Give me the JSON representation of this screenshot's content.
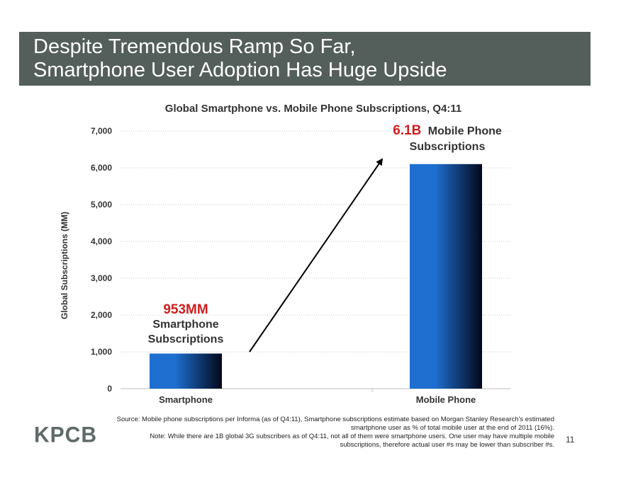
{
  "slide": {
    "title_line1": "Despite Tremendous Ramp So Far,",
    "title_line2": "Smartphone User Adoption Has Huge Upside",
    "logo": "KPCB",
    "page_number": "11",
    "source_note": "Source: Mobile phone subscriptions per Informa (as of Q4:11), Smartphone subscriptions estimate based on Morgan Stanley Research's estimated smartphone user as % of total mobile user at the end of 2011 (16%).",
    "note": "Note: While there are 1B global 3G subscribers as of Q4:11, not all of them were smartphone users. One user may have multiple mobile subscriptions, therefore actual user #s may be lower than subscriber #s."
  },
  "colors": {
    "title_bar": "#545e5a",
    "bar_light": "#1e6fd0",
    "bar_dark": "#02081a",
    "highlight_red": "#cc1f1f",
    "gridline": "#c8c8c8"
  },
  "annotations": [
    {
      "value": "953MM",
      "text_line1": "Smartphone",
      "text_line2": "Subscriptions"
    },
    {
      "value": "6.1B",
      "text_line1": "Mobile Phone",
      "text_line2": "Subscriptions"
    }
  ],
  "chart_data": {
    "type": "bar",
    "title": "Global Smartphone vs. Mobile Phone Subscriptions, Q4:11",
    "xlabel": "",
    "ylabel": "Global Subscriptions (MM)",
    "categories": [
      "Smartphone",
      "Mobile Phone"
    ],
    "values": [
      953,
      6100
    ],
    "ylim": [
      0,
      7000
    ],
    "yticks": [
      0,
      1000,
      2000,
      3000,
      4000,
      5000,
      6000,
      7000
    ],
    "ytick_labels": [
      "0",
      "1,000",
      "2,000",
      "3,000",
      "4,000",
      "5,000",
      "6,000",
      "7,000"
    ],
    "grid": true,
    "legend": "none",
    "arrow": "from Smartphone bar up to Mobile Phone bar"
  }
}
